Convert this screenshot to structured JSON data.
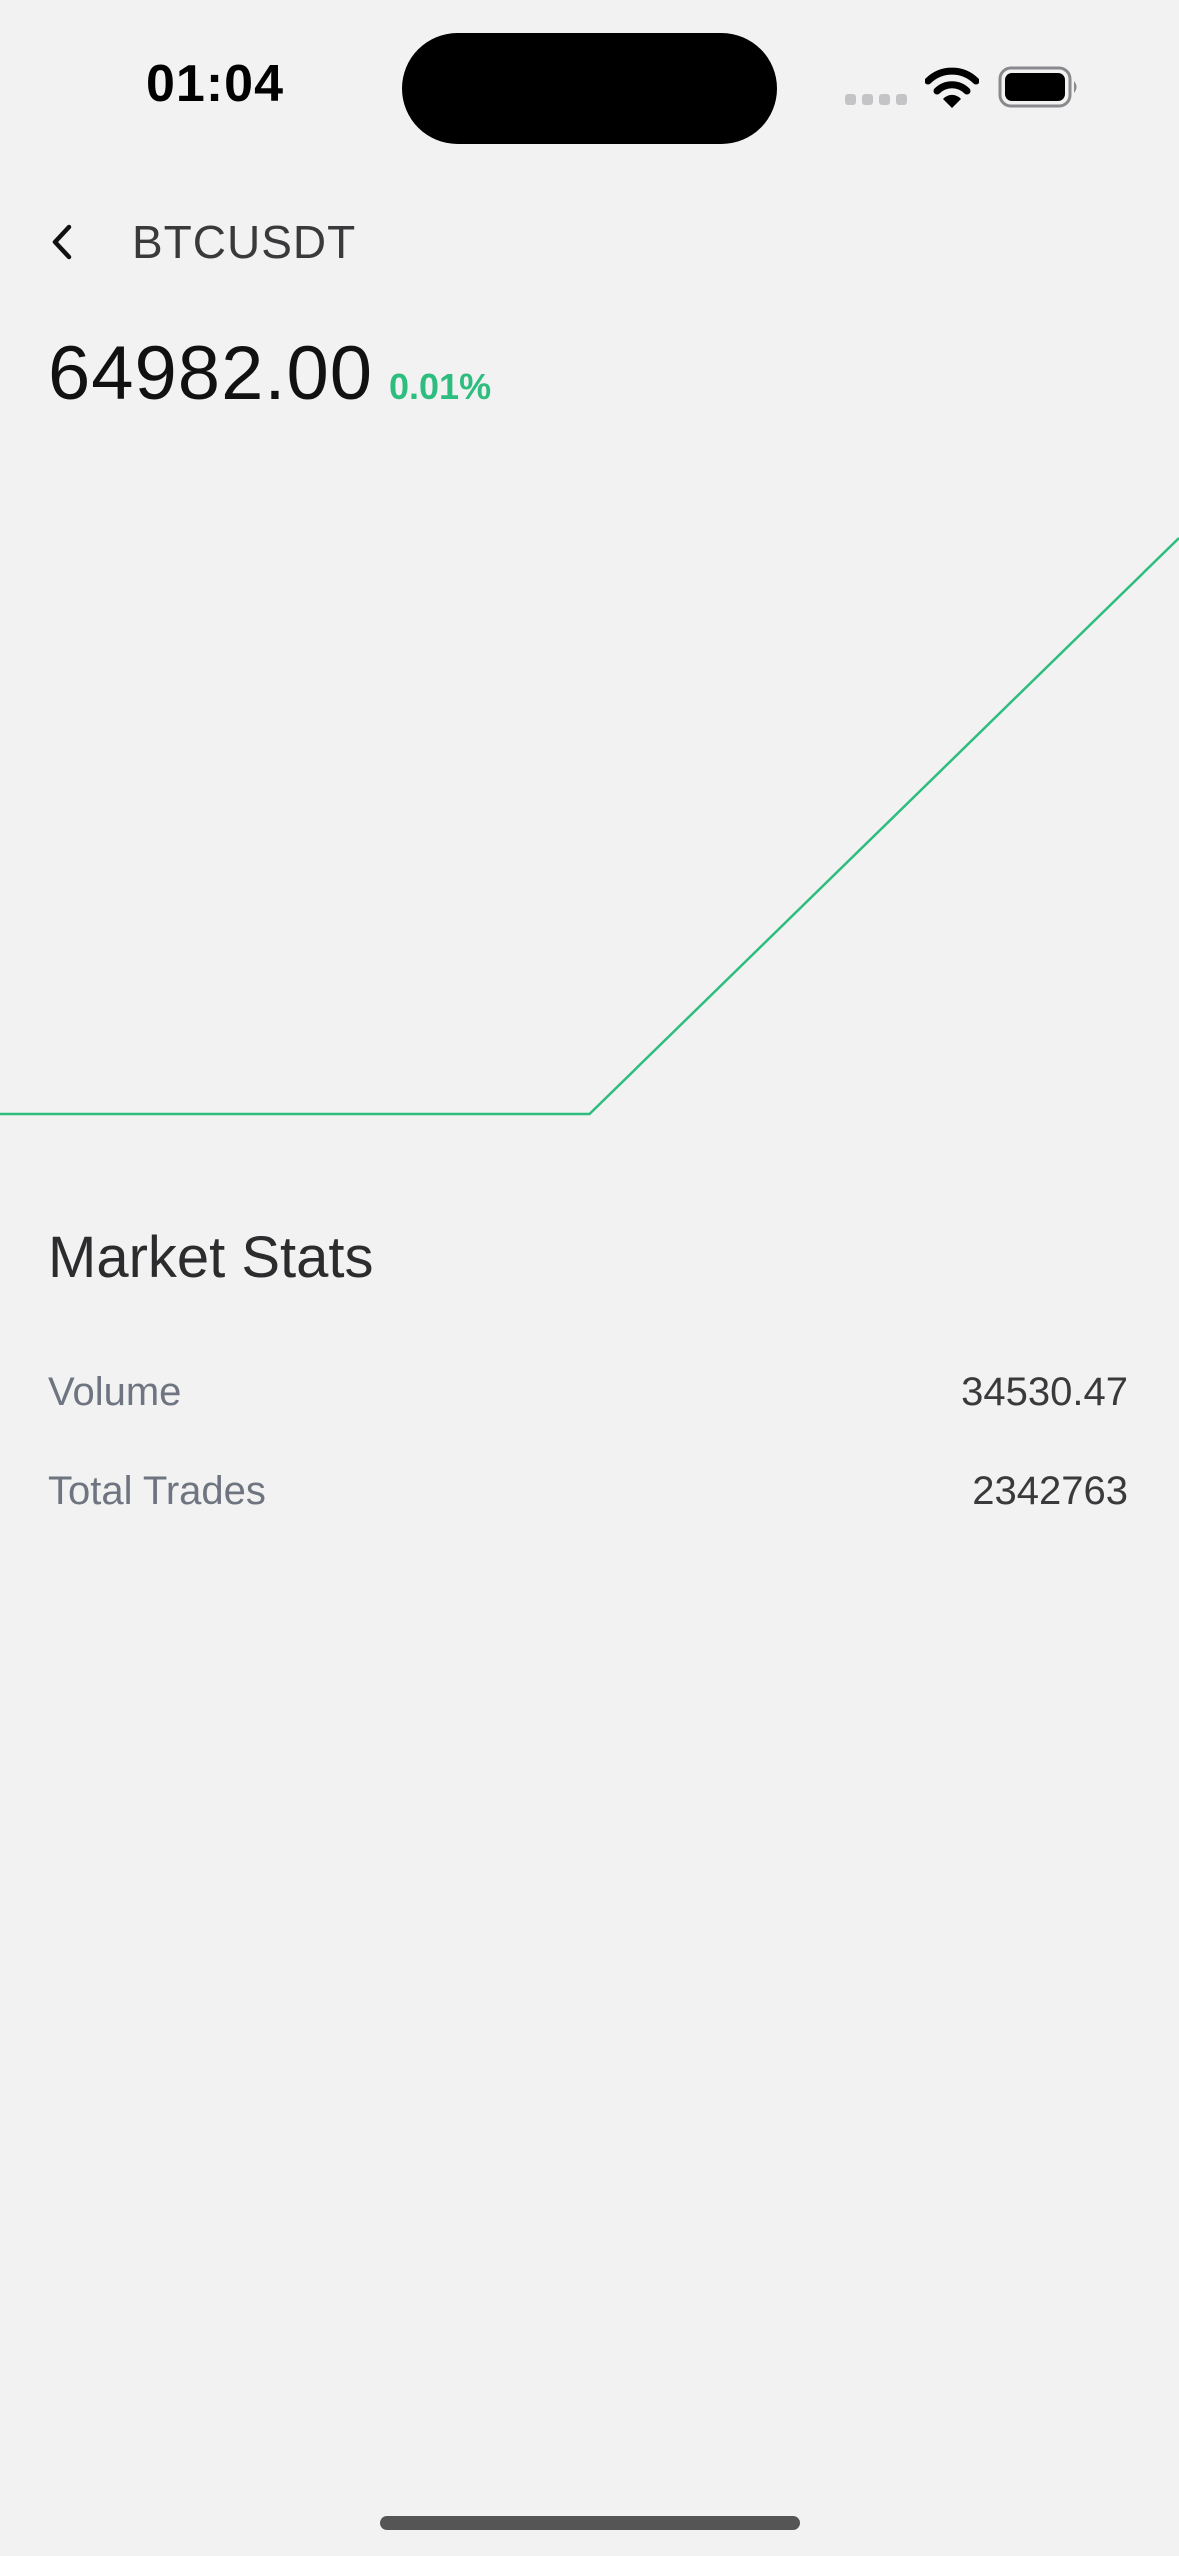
{
  "status_bar": {
    "time": "01:04",
    "icons": [
      "cellular-signal-icon",
      "wifi-icon",
      "battery-icon"
    ]
  },
  "header": {
    "back_icon": "chevron-left-icon",
    "title": "BTCUSDT"
  },
  "ticker": {
    "price": "64982.00",
    "change": "0.01%",
    "change_color": "#2dbd7e"
  },
  "chart_data": {
    "type": "line",
    "title": "",
    "xlabel": "",
    "ylabel": "",
    "grid": false,
    "series": [
      {
        "color": "#2dbd7e",
        "values": [
          0,
          0,
          1
        ]
      }
    ]
  },
  "market_stats": {
    "title": "Market Stats",
    "rows": [
      {
        "label": "Volume",
        "value": "34530.47"
      },
      {
        "label": "Total Trades",
        "value": "2342763"
      }
    ]
  }
}
